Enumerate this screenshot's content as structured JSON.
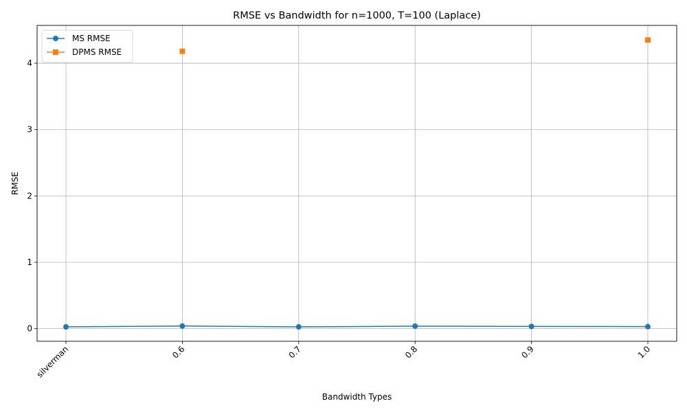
{
  "chart_data": {
    "type": "line",
    "title": "RMSE vs Bandwidth for n=1000, T=100 (Laplace)",
    "xlabel": "Bandwidth Types",
    "ylabel": "RMSE",
    "categories": [
      "silverman",
      "0.6",
      "0.7",
      "0.8",
      "0.9",
      "1.0"
    ],
    "ylim": [
      -0.19,
      4.57
    ],
    "yticks": [
      0,
      1,
      2,
      3,
      4
    ],
    "grid": true,
    "legend_position": "top-left",
    "series": [
      {
        "name": "MS RMSE",
        "color": "#1f77b4",
        "marker": "circle",
        "connected": true,
        "values": [
          0.027,
          0.04,
          0.027,
          0.038,
          0.034,
          0.031
        ]
      },
      {
        "name": "DPMS RMSE",
        "color": "#ff7f0e",
        "marker": "square",
        "connected": true,
        "values": [
          null,
          4.18,
          null,
          null,
          null,
          4.35
        ]
      }
    ]
  }
}
